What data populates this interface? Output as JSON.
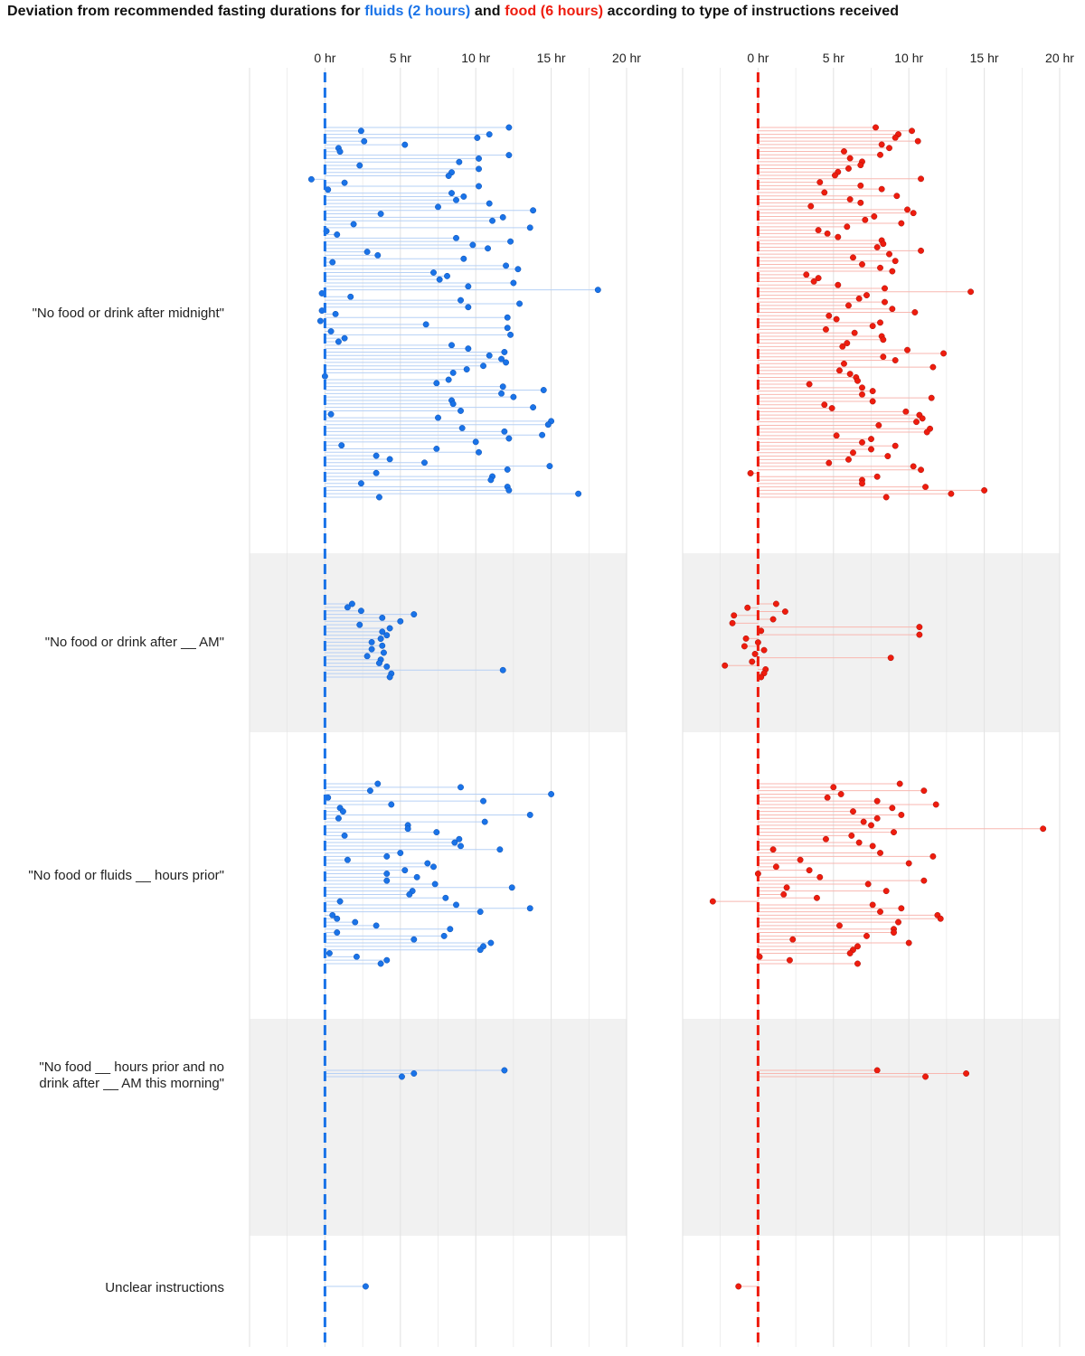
{
  "title": {
    "prefix": "Deviation from recommended fasting durations for ",
    "fluids": "fluids (2 hours)",
    "middle": " and ",
    "food": "food (6 hours)",
    "suffix": " according to type of instructions received"
  },
  "colors": {
    "fluids": "#1a73e8",
    "fluids_line": "#b6d0f5",
    "food": "#ee1c0e",
    "food_line": "#f8b7b0",
    "band": "#f1f1f1",
    "grid": "#e3e3e3",
    "text": "#222222"
  },
  "chart_data": {
    "type": "scatter",
    "subtype": "lollipop (dot plot with segments from 0)",
    "x_unit": "hr",
    "xlim": [
      -5,
      20
    ],
    "x_ticks": [
      0,
      5,
      10,
      15,
      20
    ],
    "x_tick_labels": [
      "0 hr",
      "5 hr",
      "10 hr",
      "15 hr",
      "20 hr"
    ],
    "reference_line": 0,
    "panels": [
      "fluids",
      "food"
    ],
    "categories": [
      {
        "label": "\"No food or drink after midnight\"",
        "shaded": false,
        "fluids": [
          12.2,
          2.4,
          10.9,
          10.1,
          2.6,
          5.3,
          0.9,
          1.0,
          12.2,
          10.2,
          8.9,
          2.3,
          10.2,
          8.4,
          8.2,
          -0.9,
          1.3,
          10.2,
          0.2,
          8.4,
          9.2,
          8.7,
          10.9,
          7.5,
          13.8,
          3.7,
          11.8,
          11.1,
          1.9,
          13.6,
          0.1,
          0.8,
          8.7,
          12.3,
          9.8,
          10.8,
          2.8,
          3.5,
          9.2,
          0.5,
          12.0,
          12.8,
          7.2,
          8.1,
          7.6,
          12.5,
          9.5,
          18.1,
          -0.2,
          1.7,
          9.0,
          12.9,
          9.5,
          -0.2,
          0.7,
          12.1,
          -0.3,
          6.7,
          12.1,
          0.4,
          12.3,
          1.3,
          0.9,
          8.4,
          9.5,
          11.9,
          10.9,
          11.7,
          12.0,
          10.5,
          9.4,
          8.5,
          0.0,
          8.2,
          7.4,
          11.8,
          14.5,
          11.7,
          12.5,
          8.4,
          8.5,
          13.8,
          9.0,
          0.4,
          7.5,
          15.0,
          14.8,
          9.1,
          11.9,
          14.4,
          12.2,
          10.0,
          1.1,
          7.4,
          10.2,
          3.4,
          4.3,
          6.6,
          14.9,
          12.1,
          3.4,
          11.1,
          11.0,
          2.4,
          12.1,
          12.2,
          16.8,
          3.6
        ],
        "food": [
          7.8,
          10.2,
          9.3,
          9.1,
          10.6,
          8.2,
          8.7,
          5.7,
          8.1,
          6.1,
          6.9,
          6.8,
          6.0,
          5.3,
          5.1,
          10.8,
          4.1,
          6.8,
          8.2,
          4.4,
          9.2,
          6.1,
          6.8,
          3.5,
          9.9,
          10.3,
          7.7,
          7.1,
          9.5,
          5.9,
          4.0,
          4.6,
          5.3,
          8.2,
          8.3,
          7.9,
          10.8,
          8.7,
          6.3,
          9.1,
          6.9,
          8.1,
          8.9,
          3.2,
          4.0,
          3.7,
          5.3,
          8.4,
          14.1,
          7.2,
          6.7,
          8.4,
          6.0,
          8.9,
          10.4,
          4.7,
          5.2,
          8.1,
          7.6,
          4.5,
          6.4,
          8.2,
          8.3,
          5.9,
          5.6,
          9.9,
          12.3,
          8.3,
          9.1,
          5.7,
          11.6,
          5.4,
          6.1,
          6.5,
          6.6,
          3.4,
          6.9,
          7.6,
          6.9,
          11.5,
          7.6,
          4.4,
          4.9,
          9.8,
          10.7,
          10.9,
          10.5,
          8.0,
          11.4,
          11.2,
          5.2,
          7.5,
          6.9,
          9.1,
          7.5,
          6.3,
          8.6,
          6.0,
          4.7,
          10.3,
          10.8,
          -0.5,
          7.9,
          6.9,
          6.9,
          11.1,
          15.0,
          12.8,
          8.5
        ]
      },
      {
        "label": "\"No food or drink after __ AM\"",
        "shaded": true,
        "fluids": [
          1.8,
          1.5,
          2.4,
          5.9,
          3.8,
          5.0,
          2.3,
          4.3,
          3.8,
          4.1,
          3.7,
          3.1,
          3.8,
          3.1,
          3.9,
          2.8,
          3.7,
          3.6,
          4.1,
          11.8,
          4.4,
          4.3
        ],
        "food": [
          1.2,
          -0.7,
          1.8,
          -1.6,
          1.0,
          -1.7,
          10.7,
          0.2,
          10.7,
          -0.8,
          0.0,
          -0.9,
          0.4,
          -0.2,
          8.8,
          -0.4,
          -2.2,
          0.5,
          0.4,
          0.2
        ]
      },
      {
        "label": "\"No food or fluids __ hours prior\"",
        "shaded": false,
        "fluids": [
          3.5,
          9.0,
          3.0,
          15.0,
          0.2,
          10.5,
          4.4,
          1.0,
          1.2,
          13.6,
          0.9,
          10.6,
          5.5,
          5.5,
          7.4,
          1.3,
          8.9,
          8.6,
          9.0,
          11.6,
          5.0,
          4.1,
          1.5,
          6.8,
          7.2,
          5.3,
          4.1,
          6.1,
          4.1,
          7.3,
          12.4,
          5.8,
          5.6,
          8.0,
          1.0,
          8.7,
          13.6,
          10.3,
          0.5,
          0.8,
          2.0,
          3.4,
          8.3,
          0.8,
          7.9,
          5.9,
          11.0,
          10.5,
          10.3,
          0.3,
          2.1,
          4.1,
          3.7
        ],
        "food": [
          9.4,
          5.0,
          11.0,
          5.5,
          4.6,
          7.9,
          11.8,
          8.9,
          6.3,
          9.5,
          7.9,
          7.0,
          7.5,
          18.9,
          9.0,
          6.2,
          4.5,
          6.7,
          7.6,
          1.0,
          8.1,
          11.6,
          2.8,
          10.0,
          1.2,
          3.4,
          0.0,
          4.1,
          11.0,
          7.3,
          1.9,
          8.5,
          1.7,
          3.9,
          -3.0,
          7.6,
          9.5,
          8.1,
          11.9,
          12.1,
          9.3,
          5.4,
          9.0,
          9.0,
          7.2,
          2.3,
          10.0,
          6.6,
          6.3,
          6.1,
          0.1,
          2.1,
          6.6
        ]
      },
      {
        "label": "\"No food __ hours prior and no drink after __ AM this morning\"",
        "label_lines": [
          "\"No food __ hours prior and no",
          "drink after __ AM this morning\""
        ],
        "shaded": true,
        "fluids": [
          11.9,
          5.9,
          5.1
        ],
        "food": [
          7.9,
          13.8,
          11.1
        ]
      },
      {
        "label": "Unclear instructions",
        "shaded": false,
        "fluids": [
          2.7
        ],
        "food": [
          -1.3
        ]
      }
    ]
  }
}
